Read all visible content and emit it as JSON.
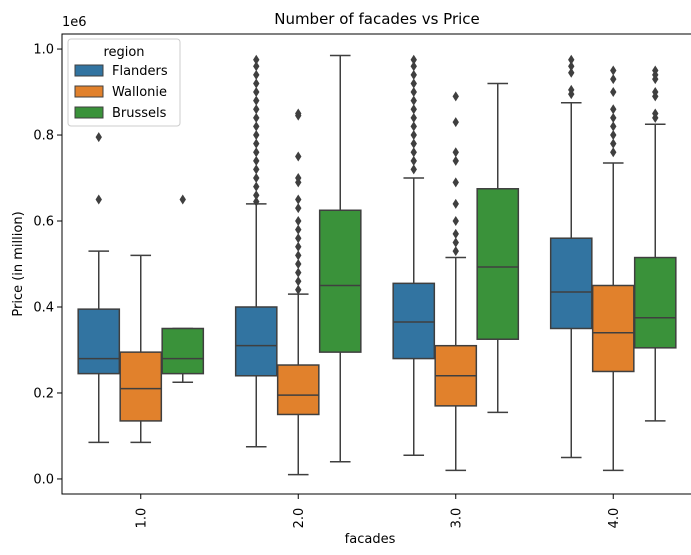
{
  "chart_data": {
    "type": "box",
    "title": "Number of facades vs Price",
    "xlabel": "facades",
    "ylabel": "Price (in million)",
    "y_offset_label": "1e6",
    "ylim": [
      -0.035,
      1.035
    ],
    "yticks": [
      0.0,
      0.2,
      0.4,
      0.6,
      0.8,
      1.0
    ],
    "ytick_labels": [
      "0.0",
      "0.2",
      "0.4",
      "0.6",
      "0.8",
      "1.0"
    ],
    "categories": [
      "1.0",
      "2.0",
      "3.0",
      "4.0"
    ],
    "legend": {
      "title": "region",
      "placement": "upper-left"
    },
    "grid": false,
    "series": [
      {
        "name": "Flanders",
        "color": "#3274a1",
        "boxes": [
          {
            "whislo": 0.085,
            "q1": 0.245,
            "med": 0.28,
            "q3": 0.395,
            "whishi": 0.53,
            "fliers": [
              0.65,
              0.795
            ]
          },
          {
            "whislo": 0.075,
            "q1": 0.24,
            "med": 0.31,
            "q3": 0.4,
            "whishi": 0.64,
            "fliers": [
              0.645,
              0.66,
              0.68,
              0.7,
              0.72,
              0.74,
              0.76,
              0.78,
              0.8,
              0.82,
              0.84,
              0.86,
              0.88,
              0.9,
              0.92,
              0.94,
              0.96,
              0.975
            ]
          },
          {
            "whislo": 0.055,
            "q1": 0.28,
            "med": 0.365,
            "q3": 0.455,
            "whishi": 0.7,
            "fliers": [
              0.72,
              0.74,
              0.76,
              0.78,
              0.8,
              0.82,
              0.84,
              0.86,
              0.88,
              0.9,
              0.92,
              0.94,
              0.96,
              0.975
            ]
          },
          {
            "whislo": 0.05,
            "q1": 0.35,
            "med": 0.435,
            "q3": 0.56,
            "whishi": 0.875,
            "fliers": [
              0.895,
              0.905,
              0.945,
              0.96,
              0.975
            ]
          }
        ]
      },
      {
        "name": "Wallonie",
        "color": "#e1812c",
        "boxes": [
          {
            "whislo": 0.085,
            "q1": 0.135,
            "med": 0.21,
            "q3": 0.295,
            "whishi": 0.52,
            "fliers": []
          },
          {
            "whislo": 0.01,
            "q1": 0.15,
            "med": 0.195,
            "q3": 0.265,
            "whishi": 0.43,
            "fliers": [
              0.44,
              0.46,
              0.48,
              0.5,
              0.52,
              0.54,
              0.56,
              0.58,
              0.6,
              0.63,
              0.65,
              0.69,
              0.7,
              0.75,
              0.845,
              0.85
            ]
          },
          {
            "whislo": 0.02,
            "q1": 0.17,
            "med": 0.24,
            "q3": 0.31,
            "whishi": 0.515,
            "fliers": [
              0.53,
              0.55,
              0.57,
              0.6,
              0.64,
              0.69,
              0.74,
              0.76,
              0.83,
              0.89
            ]
          },
          {
            "whislo": 0.02,
            "q1": 0.25,
            "med": 0.34,
            "q3": 0.45,
            "whishi": 0.735,
            "fliers": [
              0.76,
              0.78,
              0.8,
              0.82,
              0.84,
              0.86,
              0.9,
              0.93,
              0.95
            ]
          }
        ]
      },
      {
        "name": "Brussels",
        "color": "#3a923a",
        "boxes": [
          {
            "whislo": 0.225,
            "q1": 0.245,
            "med": 0.28,
            "q3": 0.35,
            "whishi": 0.35,
            "fliers": [
              0.65
            ]
          },
          {
            "whislo": 0.04,
            "q1": 0.295,
            "med": 0.45,
            "q3": 0.625,
            "whishi": 0.985,
            "fliers": []
          },
          {
            "whislo": 0.155,
            "q1": 0.325,
            "med": 0.493,
            "q3": 0.675,
            "whishi": 0.92,
            "fliers": []
          },
          {
            "whislo": 0.135,
            "q1": 0.305,
            "med": 0.375,
            "q3": 0.515,
            "whishi": 0.825,
            "fliers": [
              0.84,
              0.85,
              0.89,
              0.9,
              0.93,
              0.94,
              0.95
            ]
          }
        ]
      }
    ]
  }
}
